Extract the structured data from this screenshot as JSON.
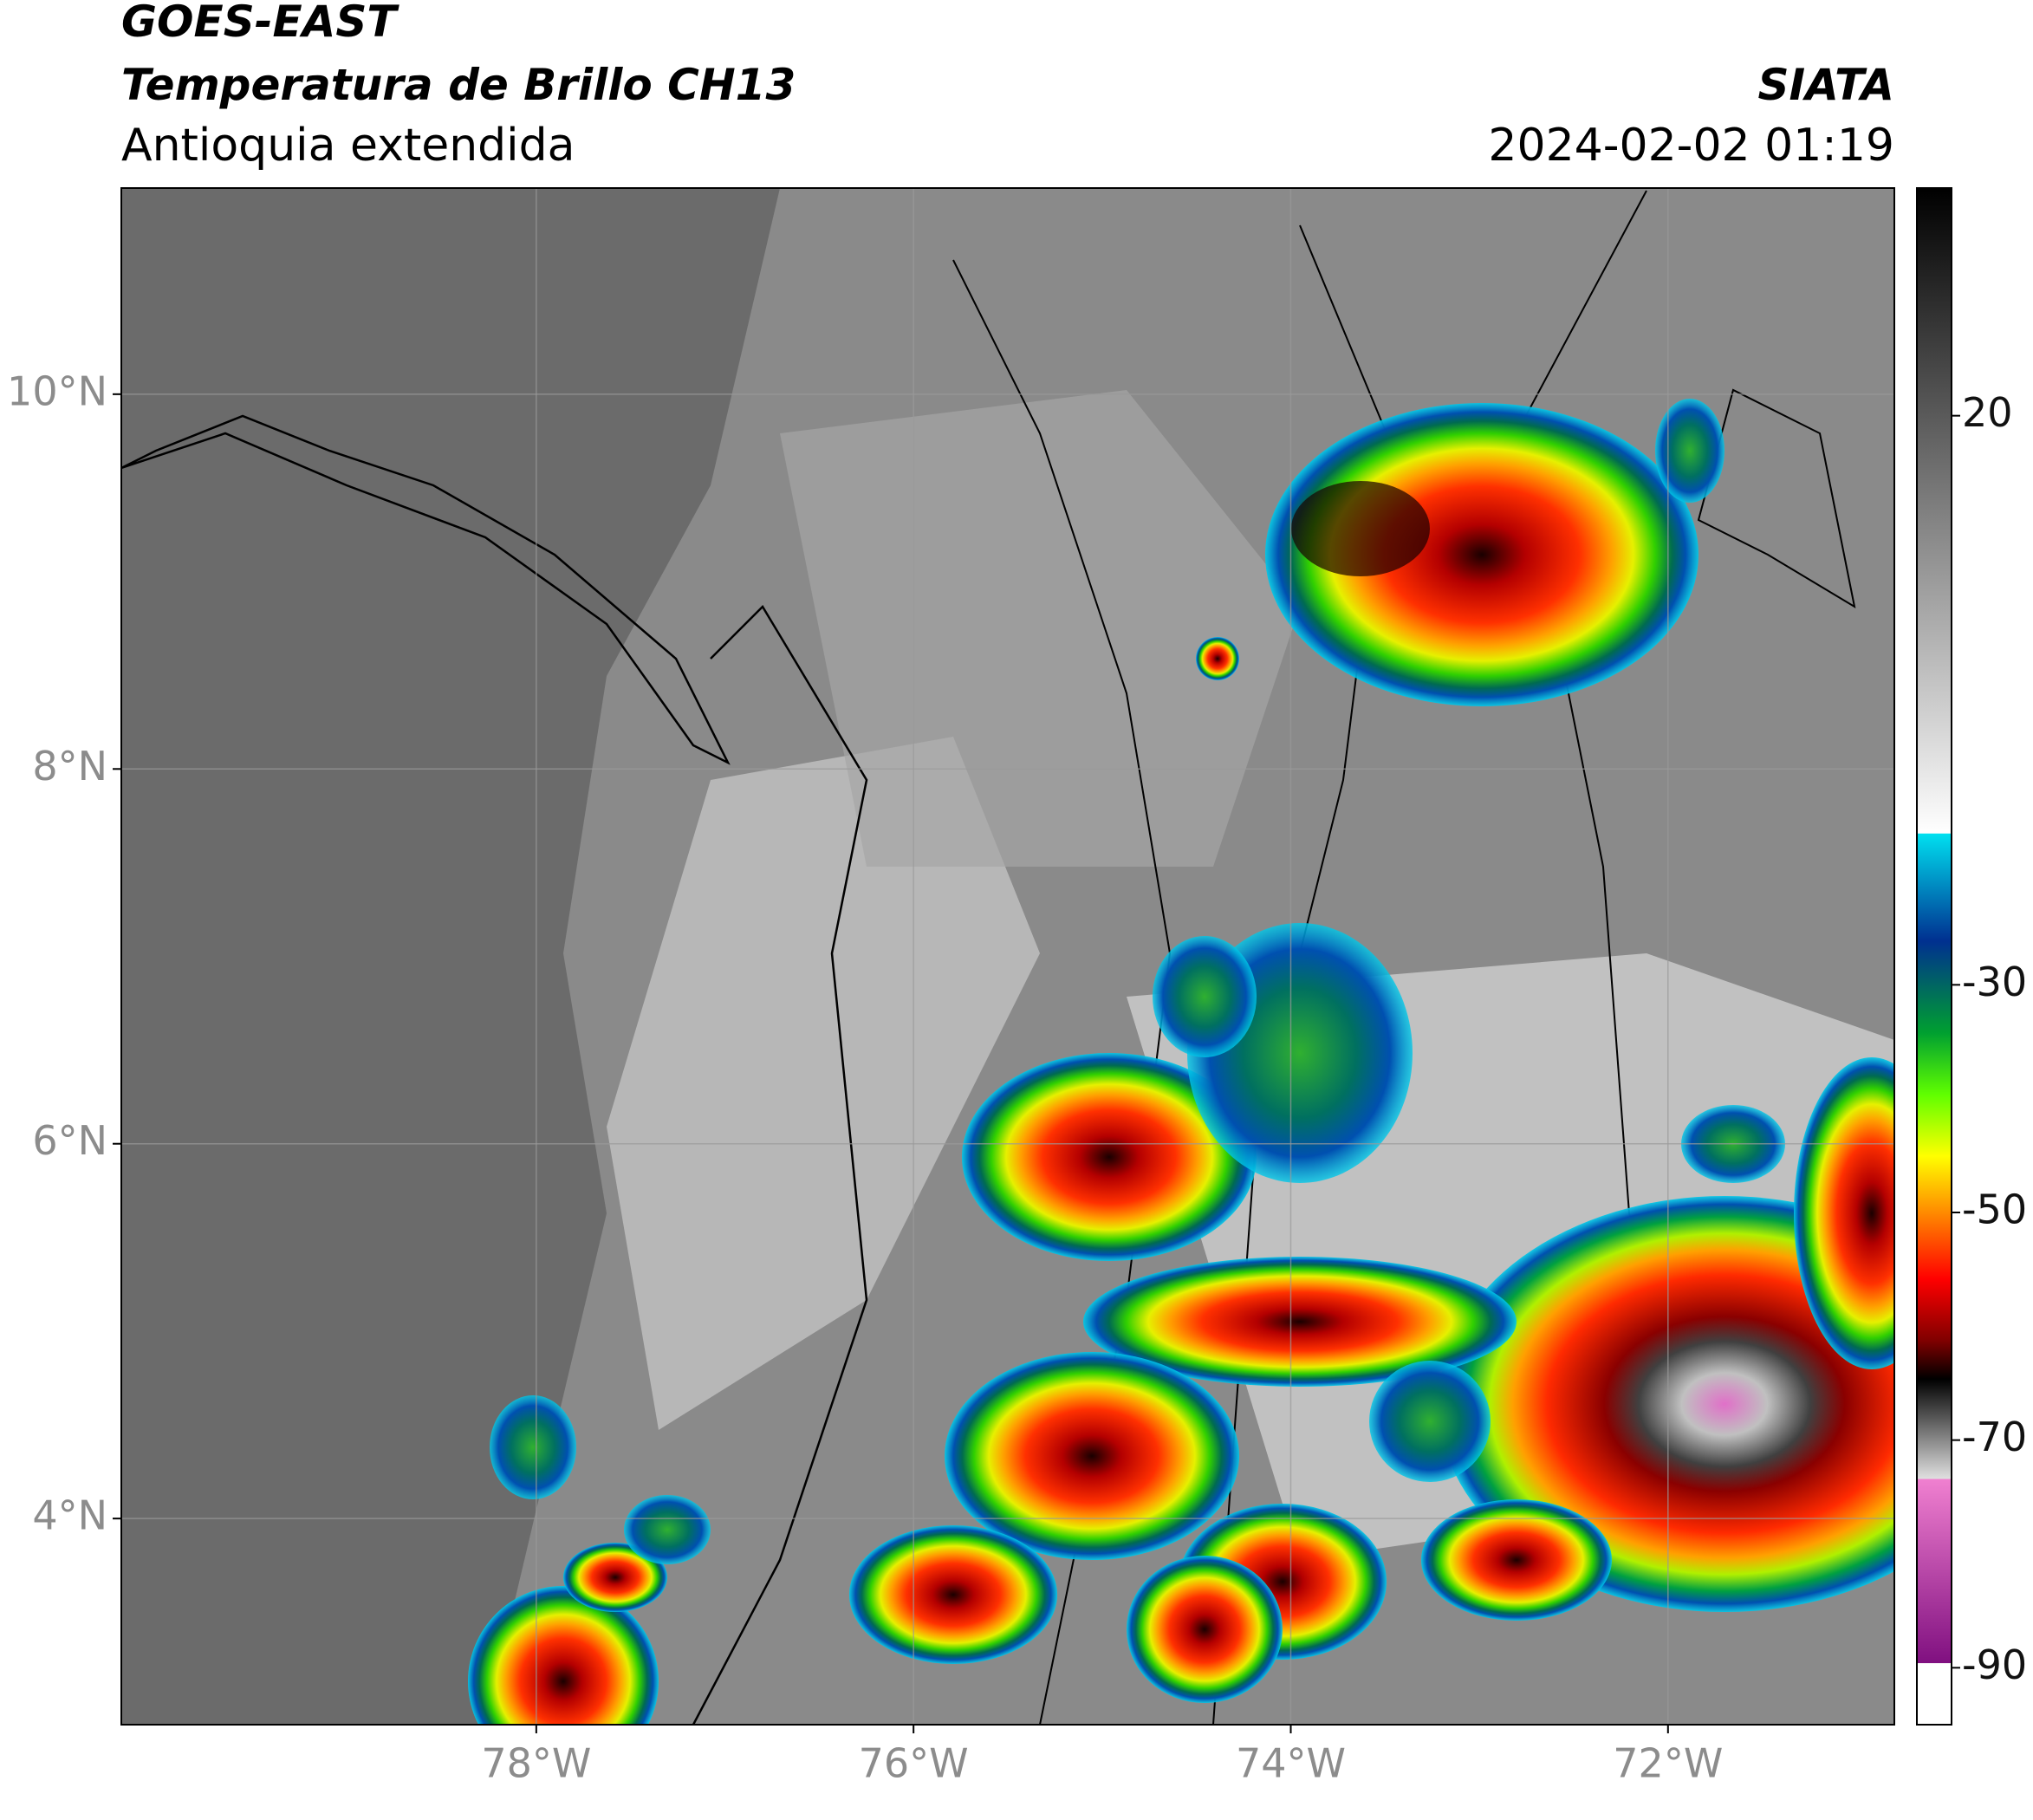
{
  "header": {
    "title": "GOES-EAST",
    "subtitle": "Temperatura de Brillo CH13",
    "region": "Antioquia extendida",
    "source": "SIATA",
    "datetime": "2024-02-02 01:19"
  },
  "map": {
    "xlim": [
      -80.2,
      -70.8
    ],
    "ylim": [
      2.9,
      11.1
    ],
    "xticks": [
      {
        "value": -78,
        "label": "78°W"
      },
      {
        "value": -76,
        "label": "76°W"
      },
      {
        "value": -74,
        "label": "74°W"
      },
      {
        "value": -72,
        "label": "72°W"
      }
    ],
    "yticks": [
      {
        "value": 10,
        "label": "10°N"
      },
      {
        "value": 8,
        "label": "8°N"
      },
      {
        "value": 6,
        "label": "6°N"
      },
      {
        "value": 4,
        "label": "4°N"
      }
    ],
    "grid": true
  },
  "colorbar": {
    "lim": [
      -95,
      40
    ],
    "ticks": [
      20,
      -30,
      -50,
      -70,
      -90
    ]
  }
}
